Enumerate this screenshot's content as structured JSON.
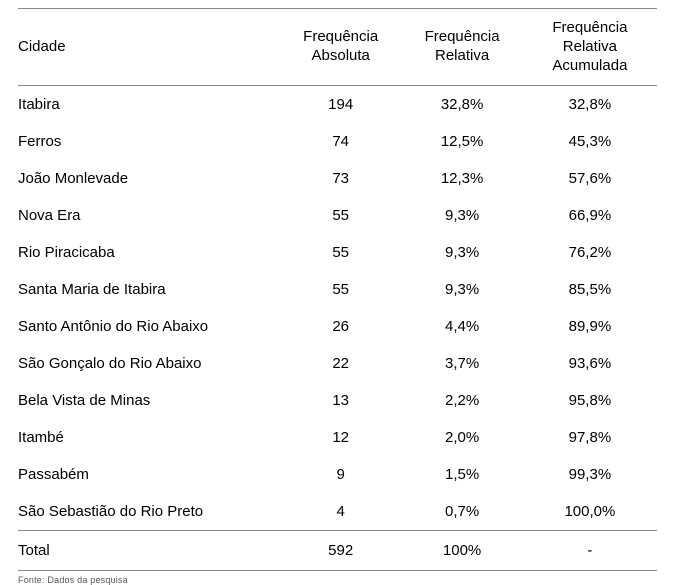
{
  "table": {
    "type": "table",
    "background_color": "#ffffff",
    "border_color": "#888888",
    "text_color": "#000000",
    "font_family": "Arial",
    "header_fontsize": 15,
    "cell_fontsize": 15,
    "columns": [
      {
        "key": "cidade",
        "label": "Cidade",
        "align": "left",
        "width_pct": 41
      },
      {
        "key": "abs",
        "label": "Frequência\nAbsoluta",
        "align": "center",
        "width_pct": 19
      },
      {
        "key": "rel",
        "label": "Frequência\nRelativa",
        "align": "center",
        "width_pct": 19
      },
      {
        "key": "acum",
        "label": "Frequência\nRelativa\nAcumulada",
        "align": "center",
        "width_pct": 21
      }
    ],
    "rows": [
      {
        "cidade": "Itabira",
        "abs": "194",
        "rel": "32,8%",
        "acum": "32,8%"
      },
      {
        "cidade": "Ferros",
        "abs": "74",
        "rel": "12,5%",
        "acum": "45,3%"
      },
      {
        "cidade": "João Monlevade",
        "abs": "73",
        "rel": "12,3%",
        "acum": "57,6%"
      },
      {
        "cidade": "Nova Era",
        "abs": "55",
        "rel": "9,3%",
        "acum": "66,9%"
      },
      {
        "cidade": "Rio Piracicaba",
        "abs": "55",
        "rel": "9,3%",
        "acum": "76,2%"
      },
      {
        "cidade": "Santa Maria de Itabira",
        "abs": "55",
        "rel": "9,3%",
        "acum": "85,5%"
      },
      {
        "cidade": "Santo Antônio do Rio Abaixo",
        "abs": "26",
        "rel": "4,4%",
        "acum": "89,9%"
      },
      {
        "cidade": "São Gonçalo do Rio Abaixo",
        "abs": "22",
        "rel": "3,7%",
        "acum": "93,6%"
      },
      {
        "cidade": "Bela Vista de Minas",
        "abs": "13",
        "rel": "2,2%",
        "acum": "95,8%"
      },
      {
        "cidade": "Itambé",
        "abs": "12",
        "rel": "2,0%",
        "acum": "97,8%"
      },
      {
        "cidade": "Passabém",
        "abs": "9",
        "rel": "1,5%",
        "acum": "99,3%"
      },
      {
        "cidade": "São Sebastião do Rio Preto",
        "abs": "4",
        "rel": "0,7%",
        "acum": "100,0%"
      }
    ],
    "total_row": {
      "cidade": "Total",
      "abs": "592",
      "rel": "100%",
      "acum": "-"
    }
  },
  "footnote": "Fonte: Dados da pesquisa"
}
